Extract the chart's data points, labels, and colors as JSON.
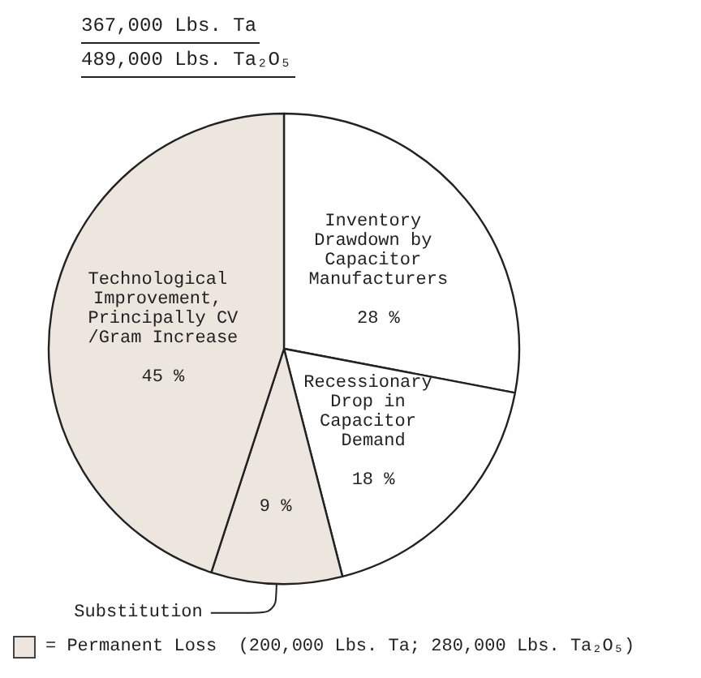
{
  "chart_data": {
    "type": "pie",
    "title": "367,000 Lbs. Ta",
    "subtitle": "489,000 Lbs. Ta₂O₅",
    "categories": [
      "Inventory Drawdown by Capacitor Manufacturers",
      "Recessionary Drop in Capacitor Demand",
      "Substitution",
      "Technological Improvement, Principally CV/Gram Increase"
    ],
    "values": [
      28,
      18,
      9,
      45
    ],
    "value_labels": [
      "28 %",
      "18 %",
      "9 %",
      "45 %"
    ],
    "colors": [
      "#ffffff",
      "#ffffff",
      "#ede6df",
      "#ede6df"
    ],
    "annotations": [
      "= Permanent Loss  (200,000 Lbs. Ta; 280,000 Lbs. Ta₂O₅)"
    ]
  }
}
